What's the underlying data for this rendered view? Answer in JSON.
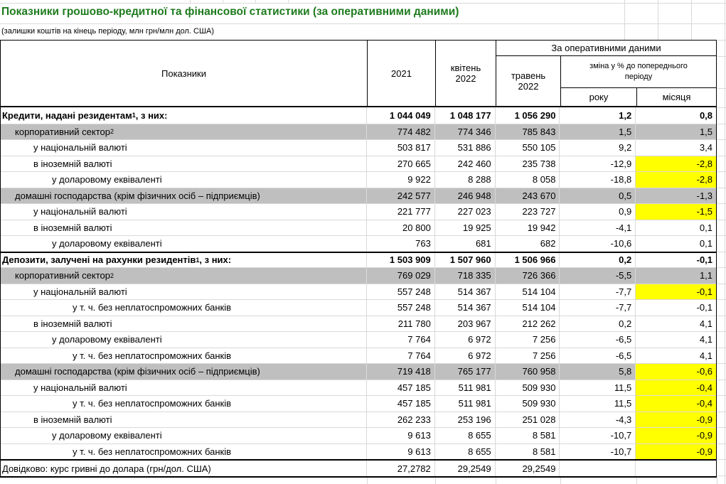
{
  "title": "Показники грошово-кредитної та фінансової статистики (за оперативними даними)",
  "subtitle": "(залишки коштів на кінець періоду, млн грн/млн дол. США)",
  "colors": {
    "title_green": "#1e7b1e",
    "band_gray": "#bfbfbf",
    "highlight_yellow": "#ffff00",
    "gridline_gray": "#d9d9d9",
    "border_black": "#000000"
  },
  "table": {
    "headers": {
      "indicators": "Показники",
      "y2021": "2021",
      "april": "квітень 2022",
      "operational": "За оперативними даними",
      "may": "травень 2022",
      "change": "зміна у % до попереднього періоду",
      "year": "року",
      "month": "місяця"
    },
    "rows": [
      {
        "label": "Кредити, надані резидентам",
        "sup": "1",
        "suffix": ", з них:",
        "indent": 0,
        "bold": true,
        "values": [
          "1 044 049",
          "1 048 177",
          "1 056 290",
          "1,2",
          "0,8"
        ]
      },
      {
        "label": "корпоративний сектор",
        "sup": "2",
        "indent": 1,
        "band": true,
        "values": [
          "774 482",
          "774 346",
          "785 843",
          "1,5",
          "1,5"
        ]
      },
      {
        "label": "у національній валюті",
        "indent": 2,
        "values": [
          "503 817",
          "531 886",
          "550 105",
          "9,2",
          "3,4"
        ]
      },
      {
        "label": "в іноземній валюті",
        "indent": 2,
        "hl": true,
        "values": [
          "270 665",
          "242 460",
          "235 738",
          "-12,9",
          "-2,8"
        ]
      },
      {
        "label": "у доларовому еквіваленті",
        "indent": 3,
        "hl": true,
        "values": [
          "9 922",
          "8 288",
          "8 058",
          "-18,8",
          "-2,8"
        ]
      },
      {
        "label": "домашні господарства (крім фізичних осіб – підприємців)",
        "indent": 1,
        "band": true,
        "values": [
          "242 577",
          "246 948",
          "243 670",
          "0,5",
          "-1,3"
        ]
      },
      {
        "label": "у національній валюті",
        "indent": 2,
        "hl": true,
        "values": [
          "221 777",
          "227 023",
          "223 727",
          "0,9",
          "-1,5"
        ]
      },
      {
        "label": "в іноземній валюті",
        "indent": 2,
        "values": [
          "20 800",
          "19 925",
          "19 942",
          "-4,1",
          "0,1"
        ]
      },
      {
        "label": "у доларовому еквіваленті",
        "indent": 3,
        "values": [
          "763",
          "681",
          "682",
          "-10,6",
          "0,1"
        ]
      },
      {
        "label": "Депозити, залучені на рахунки резидентів",
        "sup": "1",
        "suffix": ", з них:",
        "indent": 0,
        "bold": true,
        "section": true,
        "values": [
          "1 503 909",
          "1 507 960",
          "1 506 966",
          "0,2",
          "-0,1"
        ]
      },
      {
        "label": "корпоративний сектор",
        "sup": "2",
        "indent": 1,
        "band": true,
        "values": [
          "769 029",
          "718 335",
          "726 366",
          "-5,5",
          "1,1"
        ]
      },
      {
        "label": "у національній валюті",
        "indent": 2,
        "hl": true,
        "values": [
          "557 248",
          "514 367",
          "514 104",
          "-7,7",
          "-0,1"
        ]
      },
      {
        "label": "у т. ч. без неплатоспроможних банків",
        "indent": 4,
        "values": [
          "557 248",
          "514 367",
          "514 104",
          "-7,7",
          "-0,1"
        ]
      },
      {
        "label": "в іноземній валюті",
        "indent": 2,
        "values": [
          "211 780",
          "203 967",
          "212 262",
          "0,2",
          "4,1"
        ]
      },
      {
        "label": "у доларовому еквіваленті",
        "indent": 3,
        "values": [
          "7 764",
          "6 972",
          "7 256",
          "-6,5",
          "4,1"
        ]
      },
      {
        "label": "у т. ч. без неплатоспроможних банків",
        "indent": 4,
        "values": [
          "7 764",
          "6 972",
          "7 256",
          "-6,5",
          "4,1"
        ]
      },
      {
        "label": "домашні господарства (крім фізичних осіб – підприємців)",
        "indent": 1,
        "band": true,
        "hl": true,
        "values": [
          "719 418",
          "765 177",
          "760 958",
          "5,8",
          "-0,6"
        ]
      },
      {
        "label": "у національній валюті",
        "indent": 2,
        "hl": true,
        "values": [
          "457 185",
          "511 981",
          "509 930",
          "11,5",
          "-0,4"
        ]
      },
      {
        "label": "у т. ч. без неплатоспроможних банків",
        "indent": 4,
        "hl": true,
        "values": [
          "457 185",
          "511 981",
          "509 930",
          "11,5",
          "-0,4"
        ]
      },
      {
        "label": "в іноземній валюті",
        "indent": 2,
        "hl": true,
        "values": [
          "262 233",
          "253 196",
          "251 028",
          "-4,3",
          "-0,9"
        ]
      },
      {
        "label": "у доларовому еквіваленті",
        "indent": 3,
        "hl": true,
        "values": [
          "9 613",
          "8 655",
          "8 581",
          "-10,7",
          "-0,9"
        ]
      },
      {
        "label": "у т. ч. без неплатоспроможних банків",
        "indent": 4,
        "hl": true,
        "values": [
          "9 613",
          "8 655",
          "8 581",
          "-10,7",
          "-0,9"
        ]
      },
      {
        "label": "Довідково: курс гривні до долара (грн/дол. США)",
        "indent": 0,
        "section": true,
        "ref": true,
        "values": [
          "27,2782",
          "29,2549",
          "29,2549",
          "",
          ""
        ]
      }
    ]
  }
}
